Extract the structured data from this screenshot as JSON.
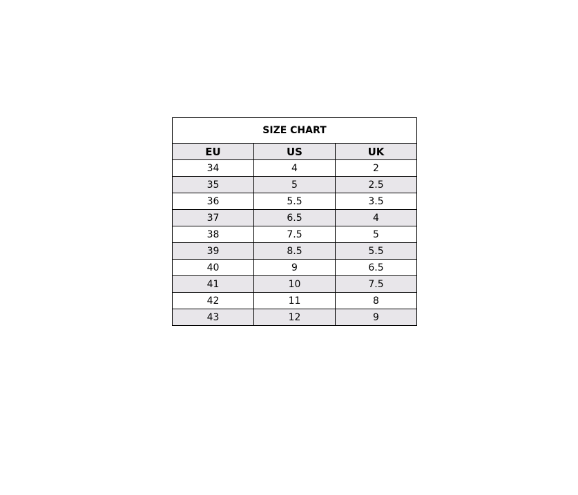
{
  "title": "SIZE CHART",
  "headers": [
    "EU",
    "US",
    "UK"
  ],
  "rows": [
    [
      "34",
      "4",
      "2"
    ],
    [
      "35",
      "5",
      "2.5"
    ],
    [
      "36",
      "5.5",
      "3.5"
    ],
    [
      "37",
      "6.5",
      "4"
    ],
    [
      "38",
      "7.5",
      "5"
    ],
    [
      "39",
      "8.5",
      "5.5"
    ],
    [
      "40",
      "9",
      "6.5"
    ],
    [
      "41",
      "10",
      "7.5"
    ],
    [
      "42",
      "11",
      "8"
    ],
    [
      "43",
      "12",
      "9"
    ]
  ],
  "colors": {
    "alt_row": "#e8e6ea",
    "border": "#000000"
  }
}
